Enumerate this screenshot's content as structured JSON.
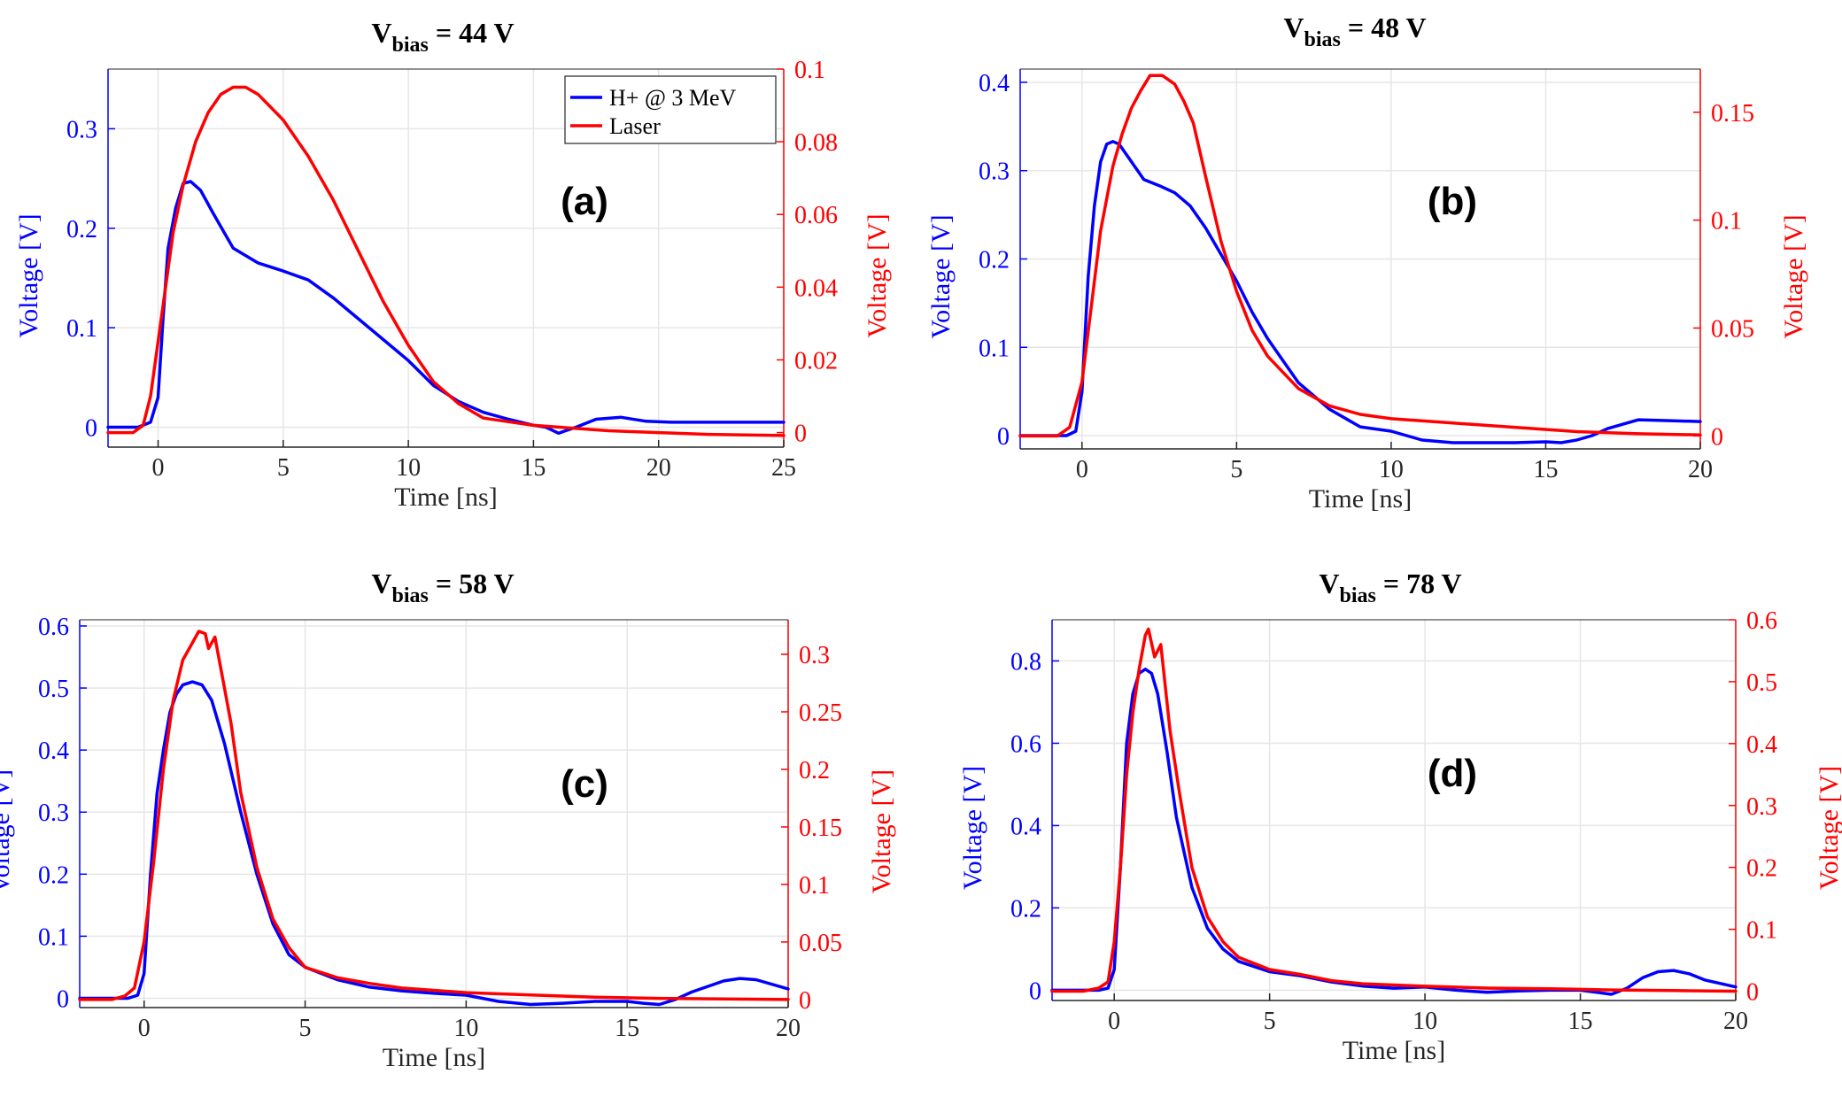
{
  "chart_data": [
    {
      "type": "line",
      "panel_label": "(a)",
      "title_main": "V",
      "title_sub": "bias",
      "title_rest": " = 44 V",
      "xlabel": "Time [ns]",
      "ylabel_left": "Voltage [V]",
      "ylabel_right": "Voltage [V]",
      "xlim": [
        -2,
        25
      ],
      "ylim_left": [
        -0.02,
        0.36
      ],
      "ylim_right": [
        -0.004,
        0.1
      ],
      "xticks": [
        0,
        5,
        10,
        15,
        20,
        25
      ],
      "yticks_left": [
        0,
        0.1,
        0.2,
        0.3
      ],
      "yticks_right": [
        0,
        0.02,
        0.04,
        0.06,
        0.08,
        0.1
      ],
      "grid": true,
      "legend": "top-right",
      "series": [
        {
          "name": "H+ @ 3 MeV",
          "axis": "left",
          "color": "#0000ff",
          "x": [
            -2,
            -0.8,
            -0.3,
            0,
            0.2,
            0.4,
            0.7,
            1.0,
            1.3,
            1.7,
            2.2,
            3.0,
            4.0,
            5.0,
            6.0,
            7.0,
            8.0,
            9.0,
            10.0,
            11.0,
            12.0,
            13.0,
            14.0,
            15.0,
            15.5,
            16.0,
            16.7,
            17.5,
            18.5,
            19.5,
            20.5,
            22,
            25
          ],
          "y": [
            0,
            0,
            0.005,
            0.03,
            0.11,
            0.18,
            0.22,
            0.245,
            0.247,
            0.238,
            0.215,
            0.18,
            0.165,
            0.157,
            0.148,
            0.13,
            0.109,
            0.088,
            0.067,
            0.042,
            0.026,
            0.015,
            0.008,
            0.002,
            0.0,
            -0.006,
            0.0,
            0.008,
            0.01,
            0.006,
            0.005,
            0.005,
            0.005
          ]
        },
        {
          "name": "Laser",
          "axis": "right",
          "color": "#ff0000",
          "x": [
            -2,
            -1,
            -0.6,
            -0.3,
            0,
            0.3,
            0.6,
            1.0,
            1.5,
            2.0,
            2.5,
            3.0,
            3.5,
            4.0,
            5.0,
            6.0,
            7.0,
            8.0,
            9.0,
            10.0,
            11.0,
            12.0,
            13.0,
            14.0,
            15.0,
            16.0,
            18.0,
            20.0,
            22.0,
            25.0
          ],
          "y": [
            0,
            0,
            0.002,
            0.01,
            0.025,
            0.04,
            0.055,
            0.068,
            0.08,
            0.088,
            0.093,
            0.095,
            0.095,
            0.093,
            0.086,
            0.076,
            0.064,
            0.05,
            0.036,
            0.024,
            0.014,
            0.008,
            0.004,
            0.003,
            0.002,
            0.0015,
            0.0005,
            0,
            -0.0005,
            -0.0008
          ]
        }
      ]
    },
    {
      "type": "line",
      "panel_label": "(b)",
      "title_main": "V",
      "title_sub": "bias",
      "title_rest": " = 48 V",
      "xlabel": "Time [ns]",
      "ylabel_left": "Voltage [V]",
      "ylabel_right": "Voltage [V]",
      "xlim": [
        -2,
        20
      ],
      "ylim_left": [
        -0.015,
        0.415
      ],
      "ylim_right": [
        -0.006,
        0.17
      ],
      "xticks": [
        0,
        5,
        10,
        15,
        20
      ],
      "yticks_left": [
        0,
        0.1,
        0.2,
        0.3,
        0.4
      ],
      "yticks_right": [
        0,
        0.05,
        0.1,
        0.15
      ],
      "grid": true,
      "legend": "none",
      "series": [
        {
          "name": "H+ @ 3 MeV",
          "axis": "left",
          "color": "#0000ff",
          "x": [
            -2,
            -0.5,
            -0.2,
            0,
            0.2,
            0.4,
            0.6,
            0.8,
            1.0,
            1.2,
            1.5,
            2.0,
            2.5,
            3.0,
            3.5,
            4.0,
            4.5,
            5.0,
            5.5,
            6.0,
            6.5,
            7.0,
            8.0,
            9.0,
            10.0,
            11.0,
            12.0,
            13.0,
            14.0,
            15.0,
            15.5,
            16.0,
            16.5,
            17.0,
            18.0,
            19.0,
            20.0
          ],
          "y": [
            0,
            0,
            0.005,
            0.05,
            0.18,
            0.26,
            0.31,
            0.33,
            0.333,
            0.33,
            0.315,
            0.29,
            0.283,
            0.275,
            0.26,
            0.235,
            0.205,
            0.175,
            0.14,
            0.11,
            0.085,
            0.06,
            0.03,
            0.01,
            0.005,
            -0.005,
            -0.008,
            -0.008,
            -0.008,
            -0.007,
            -0.008,
            -0.005,
            0.0,
            0.008,
            0.018,
            0.017,
            0.016
          ]
        },
        {
          "name": "Laser",
          "axis": "right",
          "color": "#ff0000",
          "x": [
            -2,
            -0.8,
            -0.4,
            0,
            0.3,
            0.6,
            1.0,
            1.3,
            1.6,
            1.9,
            2.2,
            2.6,
            3.0,
            3.3,
            3.6,
            4.0,
            4.5,
            5.0,
            5.5,
            6.0,
            7.0,
            8.0,
            9.0,
            10.0,
            12.0,
            14.0,
            16.0,
            18.0,
            20.0
          ],
          "y": [
            0,
            0,
            0.004,
            0.025,
            0.06,
            0.095,
            0.125,
            0.14,
            0.152,
            0.16,
            0.167,
            0.167,
            0.163,
            0.155,
            0.145,
            0.12,
            0.09,
            0.067,
            0.049,
            0.037,
            0.022,
            0.014,
            0.01,
            0.008,
            0.006,
            0.004,
            0.002,
            0.001,
            0.0005
          ]
        }
      ]
    },
    {
      "type": "line",
      "panel_label": "(c)",
      "title_main": "V",
      "title_sub": "bias",
      "title_rest": " = 58 V",
      "xlabel": "Time [ns]",
      "ylabel_left": "Voltage [V]",
      "ylabel_right": "Voltage [V]",
      "xlim": [
        -2,
        20
      ],
      "ylim_left": [
        -0.015,
        0.61
      ],
      "ylim_right": [
        -0.007,
        0.33
      ],
      "xticks": [
        0,
        5,
        10,
        15,
        20
      ],
      "yticks_left": [
        0,
        0.1,
        0.2,
        0.3,
        0.4,
        0.5,
        0.6
      ],
      "yticks_right": [
        0,
        0.05,
        0.1,
        0.15,
        0.2,
        0.25,
        0.3
      ],
      "grid": true,
      "legend": "none",
      "series": [
        {
          "name": "H+ @ 3 MeV",
          "axis": "left",
          "color": "#0000ff",
          "x": [
            -2,
            -0.5,
            -0.2,
            0,
            0.2,
            0.4,
            0.6,
            0.8,
            1.0,
            1.2,
            1.5,
            1.8,
            2.1,
            2.5,
            3.0,
            3.5,
            4.0,
            4.5,
            5.0,
            6.0,
            7.0,
            8.0,
            9.0,
            10.0,
            11.0,
            12.0,
            13.0,
            14.0,
            15.0,
            15.5,
            16.0,
            16.5,
            17.0,
            18.0,
            18.5,
            19.0,
            20.0
          ],
          "y": [
            0,
            0,
            0.005,
            0.04,
            0.2,
            0.33,
            0.4,
            0.46,
            0.49,
            0.505,
            0.51,
            0.505,
            0.48,
            0.41,
            0.3,
            0.2,
            0.12,
            0.07,
            0.05,
            0.03,
            0.018,
            0.012,
            0.008,
            0.005,
            -0.005,
            -0.01,
            -0.008,
            -0.005,
            -0.005,
            -0.008,
            -0.01,
            -0.002,
            0.01,
            0.028,
            0.032,
            0.03,
            0.015
          ]
        },
        {
          "name": "Laser",
          "axis": "right",
          "color": "#ff0000",
          "x": [
            -2,
            -1,
            -0.6,
            -0.3,
            0,
            0.3,
            0.6,
            0.9,
            1.2,
            1.5,
            1.7,
            1.9,
            2.0,
            2.2,
            2.4,
            2.7,
            3.0,
            3.5,
            4.0,
            4.5,
            5.0,
            6.0,
            7.0,
            8.0,
            10.0,
            12.0,
            14.0,
            16.0,
            18.0,
            20.0
          ],
          "y": [
            0,
            0,
            0.003,
            0.01,
            0.05,
            0.12,
            0.2,
            0.26,
            0.295,
            0.31,
            0.32,
            0.318,
            0.305,
            0.315,
            0.285,
            0.24,
            0.18,
            0.115,
            0.07,
            0.045,
            0.028,
            0.019,
            0.014,
            0.01,
            0.006,
            0.004,
            0.002,
            0.001,
            0.0005,
            0
          ]
        }
      ]
    },
    {
      "type": "line",
      "panel_label": "(d)",
      "title_main": "V",
      "title_sub": "bias",
      "title_rest": " = 78 V",
      "xlabel": "Time [ns]",
      "ylabel_left": "Voltage [V]",
      "ylabel_right": "Voltage [V]",
      "xlim": [
        -2,
        20
      ],
      "ylim_left": [
        -0.025,
        0.9
      ],
      "ylim_right": [
        -0.015,
        0.6
      ],
      "xticks": [
        0,
        5,
        10,
        15,
        20
      ],
      "yticks_left": [
        0,
        0.2,
        0.4,
        0.6,
        0.8
      ],
      "yticks_right": [
        0,
        0.1,
        0.2,
        0.3,
        0.4,
        0.5,
        0.6
      ],
      "grid": true,
      "legend": "none",
      "series": [
        {
          "name": "H+ @ 3 MeV",
          "axis": "left",
          "color": "#0000ff",
          "x": [
            -2,
            -0.5,
            -0.2,
            0,
            0.2,
            0.4,
            0.6,
            0.8,
            1.0,
            1.2,
            1.4,
            1.7,
            2.0,
            2.5,
            3.0,
            3.5,
            4.0,
            5.0,
            6.0,
            7.0,
            8.0,
            9.0,
            10.0,
            11.0,
            12.0,
            13.0,
            14.0,
            15.0,
            15.5,
            16.0,
            16.5,
            17.0,
            17.5,
            18.0,
            18.5,
            19.0,
            20.0
          ],
          "y": [
            0,
            0,
            0.005,
            0.05,
            0.3,
            0.6,
            0.72,
            0.77,
            0.78,
            0.77,
            0.72,
            0.58,
            0.42,
            0.25,
            0.15,
            0.1,
            0.07,
            0.045,
            0.035,
            0.02,
            0.01,
            0.005,
            0.008,
            0.0,
            -0.005,
            -0.002,
            0.0,
            0.0,
            -0.005,
            -0.01,
            0.005,
            0.03,
            0.045,
            0.048,
            0.04,
            0.025,
            0.008
          ]
        },
        {
          "name": "Laser",
          "axis": "right",
          "color": "#ff0000",
          "x": [
            -2,
            -1,
            -0.5,
            -0.2,
            0,
            0.2,
            0.4,
            0.6,
            0.8,
            1.0,
            1.1,
            1.3,
            1.5,
            1.8,
            2.1,
            2.5,
            3.0,
            3.5,
            4.0,
            5.0,
            6.0,
            7.0,
            8.0,
            10.0,
            12.0,
            14.0,
            16.0,
            18.0,
            20.0
          ],
          "y": [
            0,
            0,
            0.005,
            0.015,
            0.08,
            0.2,
            0.35,
            0.45,
            0.52,
            0.575,
            0.585,
            0.54,
            0.56,
            0.42,
            0.32,
            0.2,
            0.12,
            0.08,
            0.055,
            0.035,
            0.027,
            0.017,
            0.012,
            0.008,
            0.005,
            0.004,
            0.002,
            0.001,
            0
          ]
        }
      ]
    }
  ]
}
